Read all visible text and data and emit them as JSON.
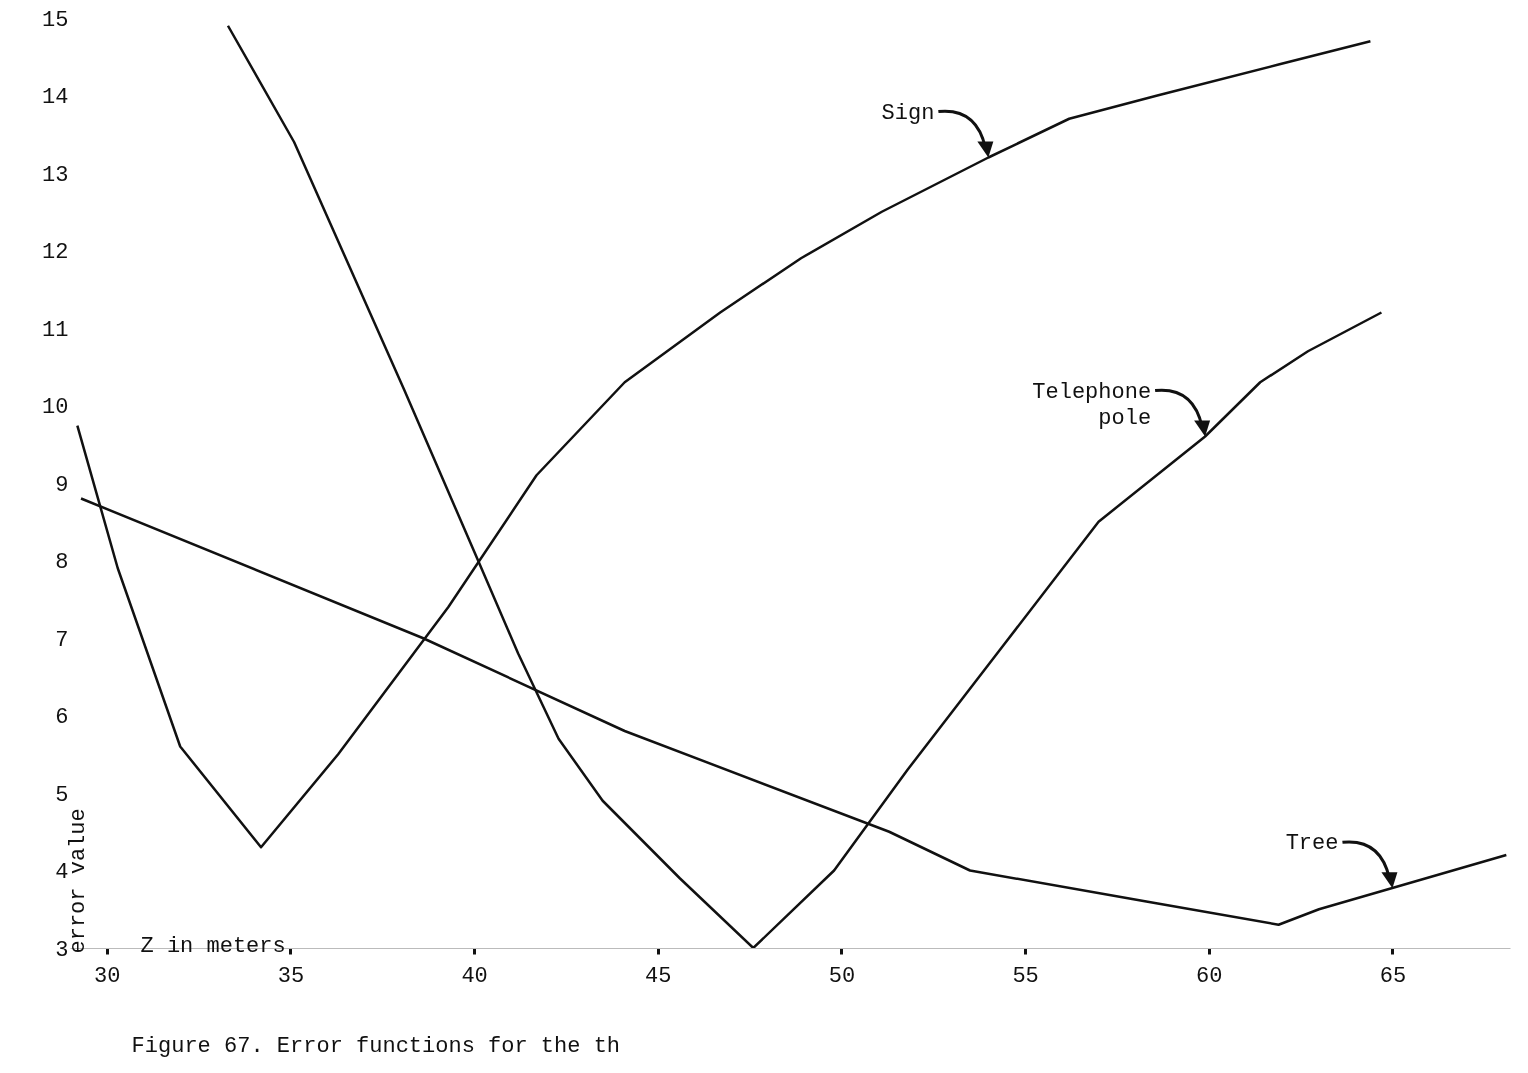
{
  "chart_data": {
    "type": "line",
    "xlabel": "Z in meters",
    "ylabel": "error value",
    "xlim": [
      29,
      68.2
    ],
    "ylim": [
      3,
      15
    ],
    "xticks": [
      30,
      35,
      40,
      45,
      50,
      55,
      60,
      65
    ],
    "yticks": [
      3,
      4,
      5,
      6,
      7,
      8,
      9,
      10,
      11,
      12,
      13,
      14,
      15
    ],
    "grid": false,
    "marker": "none",
    "line_style": "solid",
    "series": [
      {
        "color": "#111111",
        "x": [
          29.2,
          30.3,
          32.0,
          34.2,
          36.3,
          39.3,
          41.7,
          44.1,
          46.7,
          48.9,
          51.1,
          54.0,
          56.2,
          58.6,
          61.9,
          64.4
        ],
        "values": [
          9.74,
          7.9,
          5.6,
          4.3,
          5.5,
          7.4,
          9.1,
          10.3,
          11.2,
          11.9,
          12.5,
          13.2,
          13.7,
          14.0,
          14.4,
          14.7
        ]
      },
      {
        "color": "#111111",
        "x": [
          33.3,
          35.1,
          38.1,
          40.2,
          41.2,
          42.3,
          43.5,
          45.6,
          47.6,
          49.8,
          51.8,
          54.4,
          57.0,
          59.9,
          61.4,
          62.7,
          64.7
        ],
        "values": [
          14.9,
          13.4,
          10.2,
          7.9,
          6.8,
          5.7,
          4.9,
          3.9,
          3.0,
          4.0,
          5.3,
          6.9,
          8.5,
          9.6,
          10.3,
          10.7,
          11.2
        ]
      },
      {
        "color": "#111111",
        "x": [
          29.3,
          38.6,
          44.1,
          51.3,
          53.5,
          58.3,
          61.9,
          63.0,
          68.1
        ],
        "values": [
          8.8,
          7.0,
          5.8,
          4.5,
          4.0,
          3.6,
          3.3,
          3.5,
          4.2
        ]
      }
    ],
    "annotations": [
      {
        "text": "Sign",
        "x": 54.0,
        "y": 13.2
      },
      {
        "text": "Telephone pole",
        "x": 59.9,
        "y": 9.6
      },
      {
        "text": "Tree",
        "x": 65.0,
        "y": 3.77
      },
      "Figure 67. Error functions for the th"
    ]
  }
}
